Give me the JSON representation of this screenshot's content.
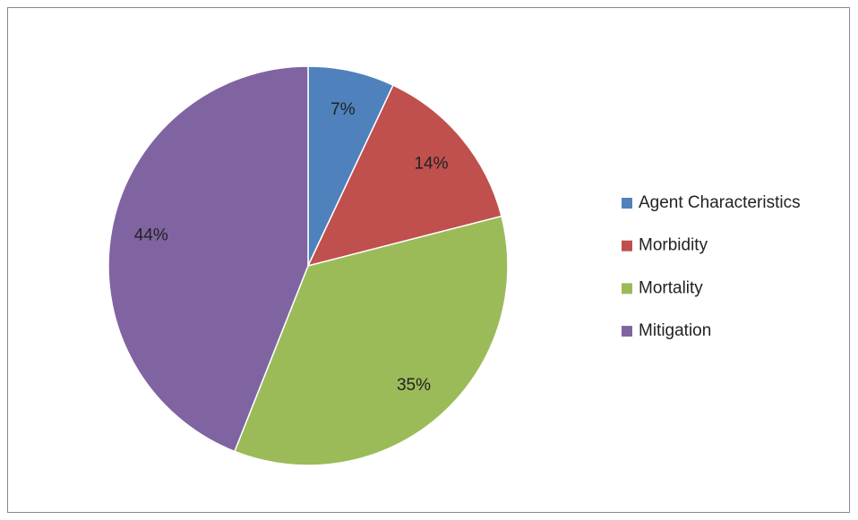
{
  "chart_data": {
    "type": "pie",
    "categories": [
      "Agent Characteristics",
      "Morbidity",
      "Mortality",
      "Mitigation"
    ],
    "values": [
      7,
      14,
      35,
      44
    ],
    "value_labels": [
      "7%",
      "14%",
      "35%",
      "44%"
    ],
    "colors": [
      "#4f81bd",
      "#c0504d",
      "#9bbb59",
      "#8064a2"
    ],
    "legend": "right"
  }
}
